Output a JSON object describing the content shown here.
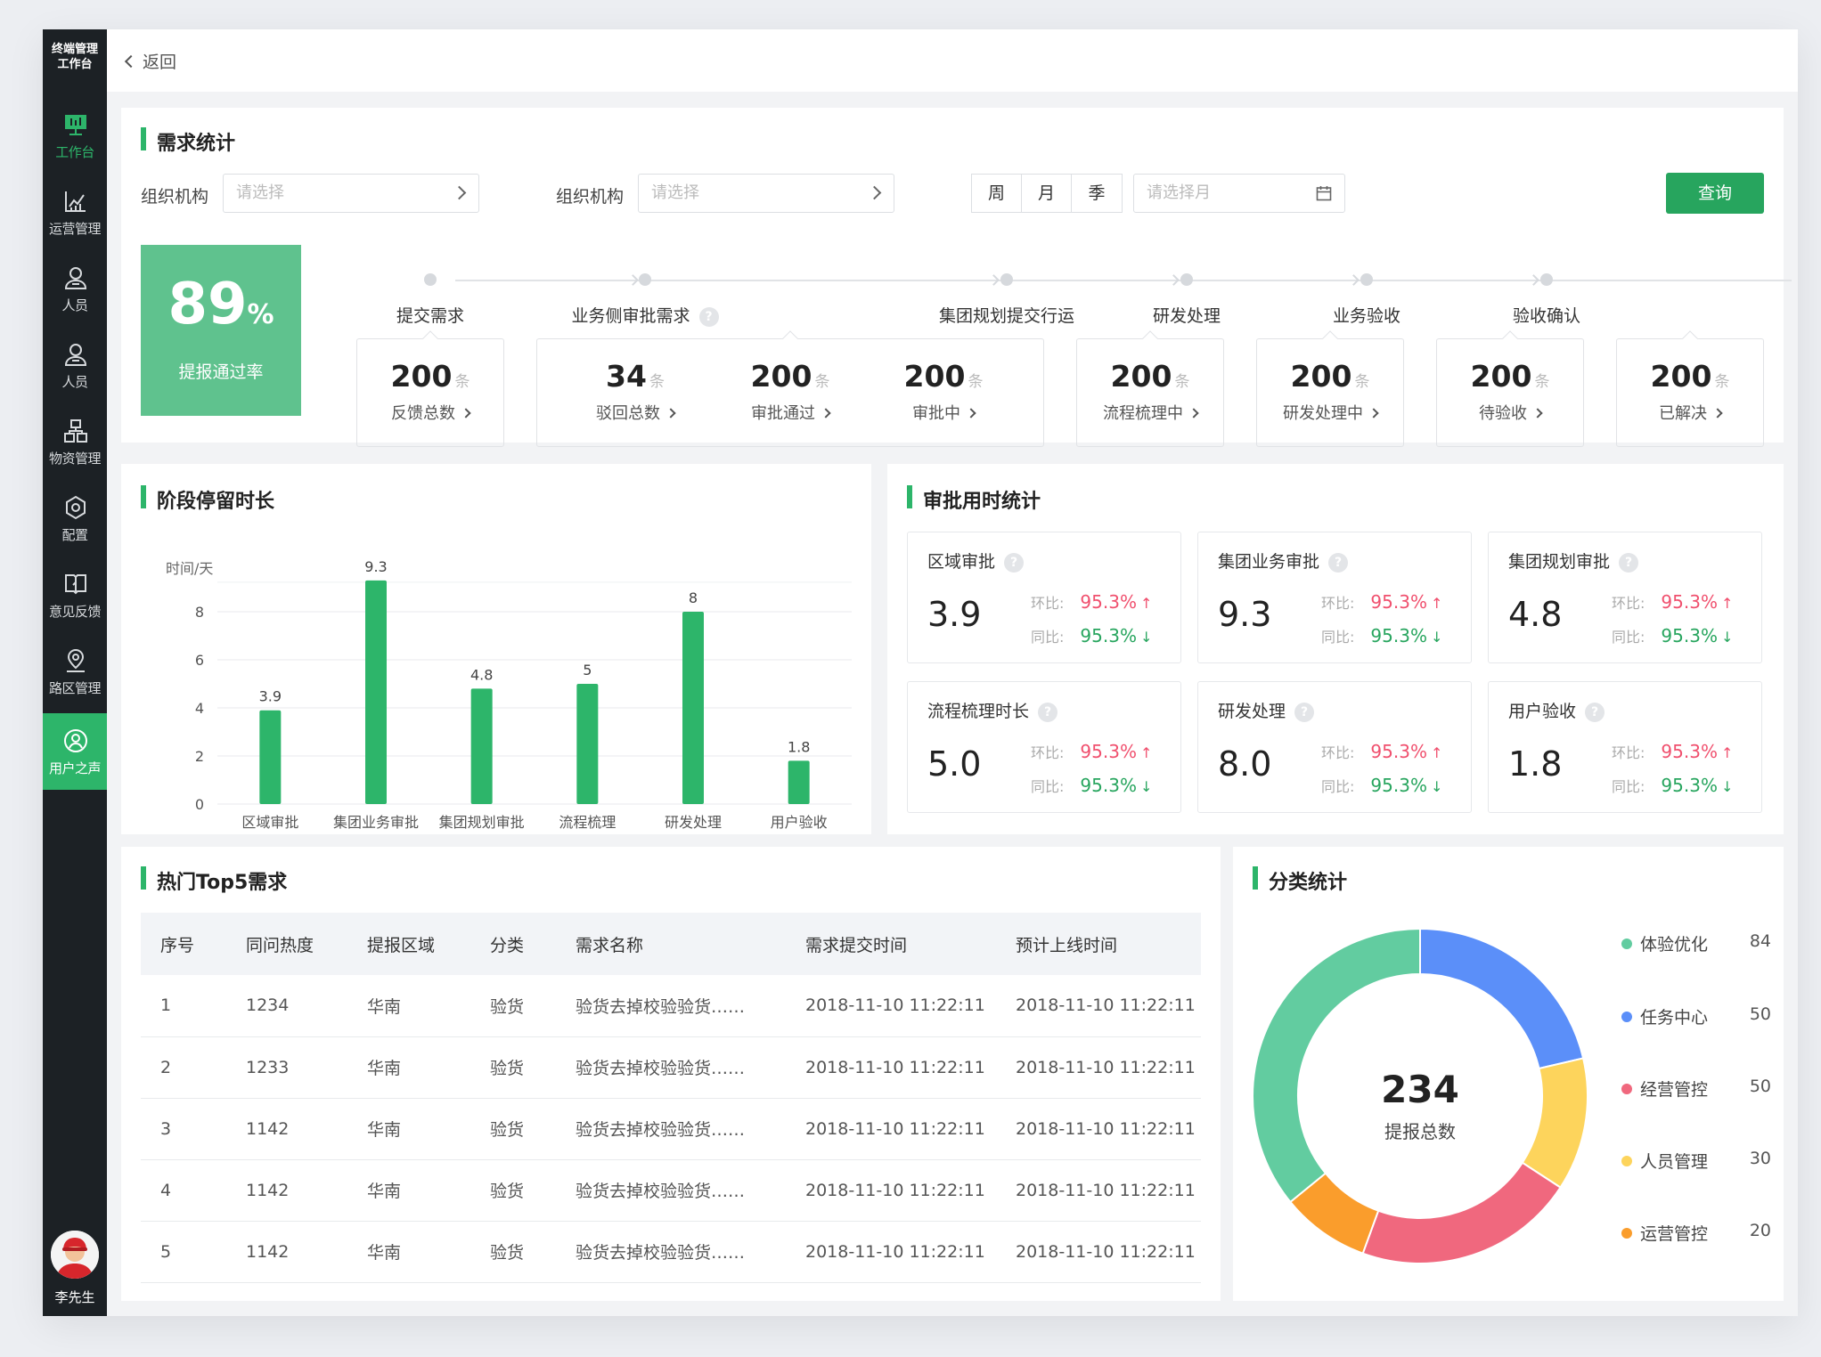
{
  "sidebar": {
    "logo_line1": "终端管理",
    "logo_line2": "工作台",
    "items": [
      {
        "label": "工作台",
        "icon": "dashboard-icon",
        "state": "active"
      },
      {
        "label": "运营管理",
        "icon": "chart-icon"
      },
      {
        "label": "人员",
        "icon": "person-icon"
      },
      {
        "label": "人员",
        "icon": "person-icon"
      },
      {
        "label": "物资管理",
        "icon": "boxes-icon"
      },
      {
        "label": "配置",
        "icon": "gear-icon"
      },
      {
        "label": "意见反馈",
        "icon": "book-icon"
      },
      {
        "label": "路区管理",
        "icon": "location-icon"
      },
      {
        "label": "用户之声",
        "icon": "user-voice-icon",
        "state": "highlighted"
      }
    ],
    "user_name": "李先生"
  },
  "topbar": {
    "back_label": "返回"
  },
  "demand": {
    "title": "需求统计",
    "filter1_label": "组织机构",
    "filter1_placeholder": "请选择",
    "filter2_label": "组织机构",
    "filter2_placeholder": "请选择",
    "period_options": [
      "周",
      "月",
      "季"
    ],
    "month_placeholder": "请选择月",
    "query_label": "查询",
    "pass_rate_value": "89",
    "pass_rate_unit": "%",
    "pass_rate_label": "提报通过率",
    "unit": "条",
    "stages": [
      {
        "label": "提交需求",
        "metrics": [
          {
            "value": "200",
            "label": "反馈总数"
          }
        ]
      },
      {
        "label": "业务侧审批需求",
        "help": true,
        "metrics": [
          {
            "value": "34",
            "label": "驳回总数"
          },
          {
            "value": "200",
            "label": "审批通过"
          },
          {
            "value": "200",
            "label": "审批中"
          }
        ]
      },
      {
        "label": "集团规划提交行运",
        "metrics": [
          {
            "value": "200",
            "label": "流程梳理中"
          }
        ]
      },
      {
        "label": "研发处理",
        "metrics": [
          {
            "value": "200",
            "label": "研发处理中"
          }
        ]
      },
      {
        "label": "业务验收",
        "metrics": [
          {
            "value": "200",
            "label": "待验收"
          }
        ]
      },
      {
        "label": "验收确认",
        "metrics": [
          {
            "value": "200",
            "label": "已解决"
          }
        ]
      }
    ]
  },
  "stage_duration": {
    "title": "阶段停留时长",
    "chart_data": {
      "type": "bar",
      "ylabel": "时间/天",
      "categories": [
        "区域审批",
        "集团业务审批",
        "集团规划审批",
        "流程梳理",
        "研发处理",
        "用户验收"
      ],
      "values": [
        3.9,
        9.3,
        4.8,
        5,
        8,
        1.8
      ],
      "value_labels": [
        "3.9",
        "9.3",
        "4.8",
        "5",
        "8",
        "1.8"
      ],
      "yticks": [
        "0",
        "2",
        "4",
        "6",
        "8"
      ],
      "ylim": [
        0,
        10
      ],
      "grid": true,
      "color": "#2db56a"
    }
  },
  "approval_time": {
    "title": "审批用时统计",
    "ring_label": "环比:",
    "yoy_label": "同比:",
    "items": [
      {
        "title": "区域审批",
        "value": "3.9",
        "mom": "95.3%",
        "yoy": "95.3%"
      },
      {
        "title": "集团业务审批",
        "value": "9.3",
        "mom": "95.3%",
        "yoy": "95.3%"
      },
      {
        "title": "集团规划审批",
        "value": "4.8",
        "mom": "95.3%",
        "yoy": "95.3%"
      },
      {
        "title": "流程梳理时长",
        "value": "5.0",
        "mom": "95.3%",
        "yoy": "95.3%"
      },
      {
        "title": "研发处理",
        "value": "8.0",
        "mom": "95.3%",
        "yoy": "95.3%"
      },
      {
        "title": "用户验收",
        "value": "1.8",
        "mom": "95.3%",
        "yoy": "95.3%"
      }
    ]
  },
  "top5": {
    "title": "热门Top5需求",
    "columns": [
      "序号",
      "同问热度",
      "提报区域",
      "分类",
      "需求名称",
      "需求提交时间",
      "预计上线时间"
    ],
    "rows": [
      [
        "1",
        "1234",
        "华南",
        "验货",
        "验货去掉校验验货……",
        "2018-11-10 11:22:11",
        "2018-11-10 11:22:11"
      ],
      [
        "2",
        "1233",
        "华南",
        "验货",
        "验货去掉校验验货……",
        "2018-11-10 11:22:11",
        "2018-11-10 11:22:11"
      ],
      [
        "3",
        "1142",
        "华南",
        "验货",
        "验货去掉校验验货……",
        "2018-11-10 11:22:11",
        "2018-11-10 11:22:11"
      ],
      [
        "4",
        "1142",
        "华南",
        "验货",
        "验货去掉校验验货……",
        "2018-11-10 11:22:11",
        "2018-11-10 11:22:11"
      ],
      [
        "5",
        "1142",
        "华南",
        "验货",
        "验货去掉校验验货……",
        "2018-11-10 11:22:11",
        "2018-11-10 11:22:11"
      ]
    ]
  },
  "category": {
    "title": "分类统计",
    "total_value": "234",
    "total_label": "提报总数",
    "chart_data": {
      "type": "pie",
      "donut": true,
      "legend": "right",
      "slices": [
        {
          "name": "体验优化",
          "value": 84,
          "color": "#62cca0"
        },
        {
          "name": "任务中心",
          "value": 50,
          "color": "#5b8ff9"
        },
        {
          "name": "经营管控",
          "value": 50,
          "color": "#f0687e"
        },
        {
          "name": "人员管理",
          "value": 30,
          "color": "#fdd45c"
        },
        {
          "name": "运营管控",
          "value": 20,
          "color": "#fa9d2c"
        }
      ],
      "draw_order": [
        "任务中心",
        "人员管理",
        "经营管控",
        "运营管控",
        "体验优化"
      ]
    }
  }
}
